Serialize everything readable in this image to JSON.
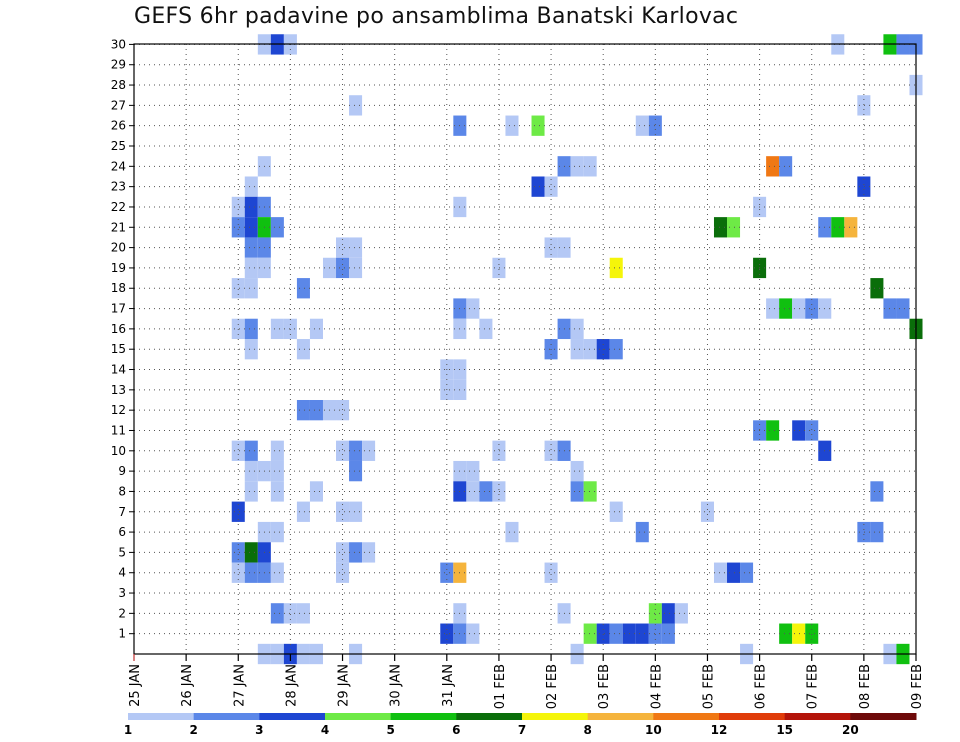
{
  "title": "GEFS 6hr padavine po ansamblima Banatski Karlovac",
  "chart_data": {
    "type": "heatmap",
    "title": "GEFS 6hr padavine po ansamblima Banatski Karlovac",
    "xlabel": "",
    "ylabel": "",
    "x_ticks": [
      "25 JAN",
      "26 JAN",
      "27 JAN",
      "28 JAN",
      "29 JAN",
      "30 JAN",
      "31 JAN",
      "01 FEB",
      "02 FEB",
      "03 FEB",
      "04 FEB",
      "05 FEB",
      "06 FEB",
      "07 FEB",
      "08 FEB",
      "09 FEB"
    ],
    "y_ticks": [
      1,
      2,
      3,
      4,
      5,
      6,
      7,
      8,
      9,
      10,
      11,
      12,
      13,
      14,
      15,
      16,
      17,
      18,
      19,
      20,
      21,
      22,
      23,
      24,
      25,
      26,
      27,
      28,
      29,
      30
    ],
    "x_unit": "6-hour steps from 25 JAN 00Z",
    "x_range": [
      0,
      60
    ],
    "y_range": [
      0,
      30
    ],
    "grid": true,
    "legend": {
      "placement": "bottom",
      "levels": [
        1,
        2,
        3,
        4,
        5,
        6,
        7,
        8,
        10,
        12,
        15,
        20
      ],
      "labels": [
        "1",
        "2",
        "3",
        "4",
        "5",
        "6",
        "7",
        "8",
        "10",
        "12",
        "15",
        "20"
      ],
      "colors": [
        "#b4c8f5",
        "#5b87e8",
        "#1e46d2",
        "#6eea46",
        "#10c010",
        "#0a6e0a",
        "#f5f50a",
        "#f5b43c",
        "#f07814",
        "#e03c0a",
        "#b4140a",
        "#6e0a0a"
      ]
    },
    "cells": [
      [
        10,
        30,
        1
      ],
      [
        11,
        30,
        3
      ],
      [
        12,
        30,
        1
      ],
      [
        54,
        30,
        1
      ],
      [
        58,
        30,
        5
      ],
      [
        59,
        30,
        2
      ],
      [
        60,
        30,
        2
      ],
      [
        60,
        28,
        1
      ],
      [
        17,
        27,
        1
      ],
      [
        56,
        27,
        1
      ],
      [
        25,
        26,
        2
      ],
      [
        29,
        26,
        1
      ],
      [
        31,
        26,
        4
      ],
      [
        39,
        26,
        1
      ],
      [
        40,
        26,
        2
      ],
      [
        10,
        24,
        1
      ],
      [
        33,
        24,
        2
      ],
      [
        34,
        24,
        1
      ],
      [
        35,
        24,
        1
      ],
      [
        49,
        24,
        9
      ],
      [
        50,
        24,
        2
      ],
      [
        9,
        23,
        1
      ],
      [
        31,
        23,
        3
      ],
      [
        32,
        23,
        1
      ],
      [
        56,
        23,
        3
      ],
      [
        8,
        22,
        1
      ],
      [
        9,
        22,
        3
      ],
      [
        10,
        22,
        2
      ],
      [
        25,
        22,
        1
      ],
      [
        48,
        22,
        1
      ],
      [
        8,
        21,
        2
      ],
      [
        9,
        21,
        3
      ],
      [
        10,
        21,
        5
      ],
      [
        11,
        21,
        2
      ],
      [
        45,
        21,
        6
      ],
      [
        46,
        21,
        4
      ],
      [
        53,
        21,
        2
      ],
      [
        54,
        21,
        5
      ],
      [
        55,
        21,
        8
      ],
      [
        9,
        20,
        2
      ],
      [
        10,
        20,
        2
      ],
      [
        16,
        20,
        1
      ],
      [
        17,
        20,
        1
      ],
      [
        32,
        20,
        1
      ],
      [
        33,
        20,
        1
      ],
      [
        9,
        19,
        1
      ],
      [
        10,
        19,
        1
      ],
      [
        15,
        19,
        1
      ],
      [
        16,
        19,
        2
      ],
      [
        17,
        19,
        1
      ],
      [
        28,
        19,
        1
      ],
      [
        37,
        19,
        7
      ],
      [
        48,
        19,
        6
      ],
      [
        8,
        18,
        1
      ],
      [
        9,
        18,
        1
      ],
      [
        13,
        18,
        2
      ],
      [
        57,
        18,
        6
      ],
      [
        25,
        17,
        2
      ],
      [
        26,
        17,
        1
      ],
      [
        49,
        17,
        1
      ],
      [
        50,
        17,
        5
      ],
      [
        51,
        17,
        1
      ],
      [
        52,
        17,
        2
      ],
      [
        53,
        17,
        1
      ],
      [
        58,
        17,
        2
      ],
      [
        59,
        17,
        2
      ],
      [
        8,
        16,
        1
      ],
      [
        9,
        16,
        2
      ],
      [
        11,
        16,
        1
      ],
      [
        12,
        16,
        1
      ],
      [
        14,
        16,
        1
      ],
      [
        25,
        16,
        1
      ],
      [
        27,
        16,
        1
      ],
      [
        33,
        16,
        2
      ],
      [
        34,
        16,
        1
      ],
      [
        60,
        16,
        6
      ],
      [
        9,
        15,
        1
      ],
      [
        13,
        15,
        1
      ],
      [
        32,
        15,
        2
      ],
      [
        34,
        15,
        1
      ],
      [
        35,
        15,
        1
      ],
      [
        36,
        15,
        3
      ],
      [
        37,
        15,
        2
      ],
      [
        24,
        14,
        1
      ],
      [
        25,
        14,
        1
      ],
      [
        24,
        13,
        1
      ],
      [
        25,
        13,
        1
      ],
      [
        13,
        12,
        2
      ],
      [
        14,
        12,
        2
      ],
      [
        15,
        12,
        1
      ],
      [
        16,
        12,
        1
      ],
      [
        48,
        11,
        2
      ],
      [
        49,
        11,
        5
      ],
      [
        51,
        11,
        3
      ],
      [
        52,
        11,
        2
      ],
      [
        8,
        10,
        1
      ],
      [
        9,
        10,
        2
      ],
      [
        11,
        10,
        1
      ],
      [
        16,
        10,
        1
      ],
      [
        17,
        10,
        2
      ],
      [
        18,
        10,
        1
      ],
      [
        28,
        10,
        1
      ],
      [
        32,
        10,
        1
      ],
      [
        33,
        10,
        2
      ],
      [
        53,
        10,
        3
      ],
      [
        9,
        9,
        1
      ],
      [
        10,
        9,
        1
      ],
      [
        11,
        9,
        1
      ],
      [
        17,
        9,
        2
      ],
      [
        25,
        9,
        1
      ],
      [
        26,
        9,
        1
      ],
      [
        34,
        9,
        1
      ],
      [
        9,
        8,
        1
      ],
      [
        11,
        8,
        1
      ],
      [
        14,
        8,
        1
      ],
      [
        25,
        8,
        3
      ],
      [
        26,
        8,
        1
      ],
      [
        27,
        8,
        2
      ],
      [
        28,
        8,
        1
      ],
      [
        34,
        8,
        2
      ],
      [
        35,
        8,
        4
      ],
      [
        57,
        8,
        2
      ],
      [
        8,
        7,
        3
      ],
      [
        13,
        7,
        1
      ],
      [
        16,
        7,
        1
      ],
      [
        17,
        7,
        1
      ],
      [
        37,
        7,
        1
      ],
      [
        44,
        7,
        1
      ],
      [
        10,
        6,
        1
      ],
      [
        11,
        6,
        1
      ],
      [
        29,
        6,
        1
      ],
      [
        39,
        6,
        2
      ],
      [
        56,
        6,
        2
      ],
      [
        57,
        6,
        2
      ],
      [
        8,
        5,
        2
      ],
      [
        9,
        5,
        6
      ],
      [
        10,
        5,
        3
      ],
      [
        16,
        5,
        1
      ],
      [
        17,
        5,
        2
      ],
      [
        18,
        5,
        1
      ],
      [
        8,
        4,
        1
      ],
      [
        9,
        4,
        2
      ],
      [
        10,
        4,
        2
      ],
      [
        11,
        4,
        1
      ],
      [
        16,
        4,
        1
      ],
      [
        24,
        4,
        2
      ],
      [
        25,
        4,
        8
      ],
      [
        32,
        4,
        1
      ],
      [
        45,
        4,
        1
      ],
      [
        46,
        4,
        3
      ],
      [
        47,
        4,
        2
      ],
      [
        11,
        2,
        2
      ],
      [
        12,
        2,
        1
      ],
      [
        13,
        2,
        1
      ],
      [
        25,
        2,
        1
      ],
      [
        33,
        2,
        1
      ],
      [
        40,
        2,
        4
      ],
      [
        41,
        2,
        3
      ],
      [
        42,
        2,
        1
      ],
      [
        24,
        1,
        3
      ],
      [
        25,
        1,
        2
      ],
      [
        26,
        1,
        1
      ],
      [
        35,
        1,
        4
      ],
      [
        36,
        1,
        3
      ],
      [
        37,
        1,
        2
      ],
      [
        38,
        1,
        3
      ],
      [
        39,
        1,
        3
      ],
      [
        40,
        1,
        2
      ],
      [
        41,
        1,
        2
      ],
      [
        50,
        1,
        5
      ],
      [
        51,
        1,
        7
      ],
      [
        52,
        1,
        5
      ],
      [
        10,
        0,
        1
      ],
      [
        11,
        0,
        1
      ],
      [
        12,
        0,
        3
      ],
      [
        13,
        0,
        1
      ],
      [
        14,
        0,
        1
      ],
      [
        17,
        0,
        1
      ],
      [
        34,
        0,
        1
      ],
      [
        47,
        0,
        1
      ],
      [
        58,
        0,
        1
      ],
      [
        59,
        0,
        5
      ]
    ]
  }
}
